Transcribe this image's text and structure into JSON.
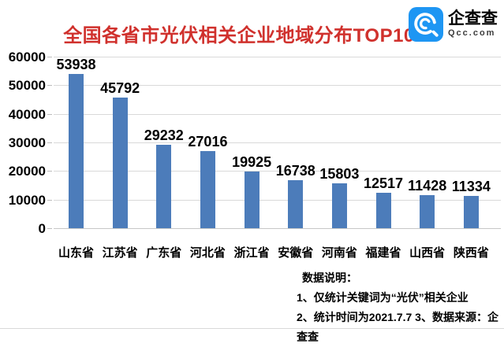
{
  "title": "全国各省市光伏相关企业地域分布TOP10",
  "logo": {
    "name": "企查查",
    "domain": "Qcc.com",
    "icon": "qcc-magnifier-icon"
  },
  "chart_data": {
    "type": "bar",
    "title": "全国各省市光伏相关企业地域分布TOP10",
    "categories": [
      "山东省",
      "江苏省",
      "广东省",
      "河北省",
      "浙江省",
      "安徽省",
      "河南省",
      "福建省",
      "山西省",
      "陕西省"
    ],
    "values": [
      53938,
      45792,
      29232,
      27016,
      19925,
      16738,
      15803,
      12517,
      11428,
      11334
    ],
    "xlabel": "",
    "ylabel": "",
    "ylim": [
      0,
      60000
    ],
    "ytick_step": 10000,
    "grid": true,
    "legend": "none",
    "value_labels": true
  },
  "footnotes": {
    "heading": "数据说明：",
    "items": [
      "1、仅统计关键词为“光伏”相关企业",
      "2、统计时间为2021.7.7 3、数据来源：企查查"
    ]
  },
  "colors": {
    "title_red": "#d0312d",
    "bar_blue": "#4c7cba",
    "logo_blue": "#1e96f3",
    "grid_gray": "#d9d9d9"
  }
}
